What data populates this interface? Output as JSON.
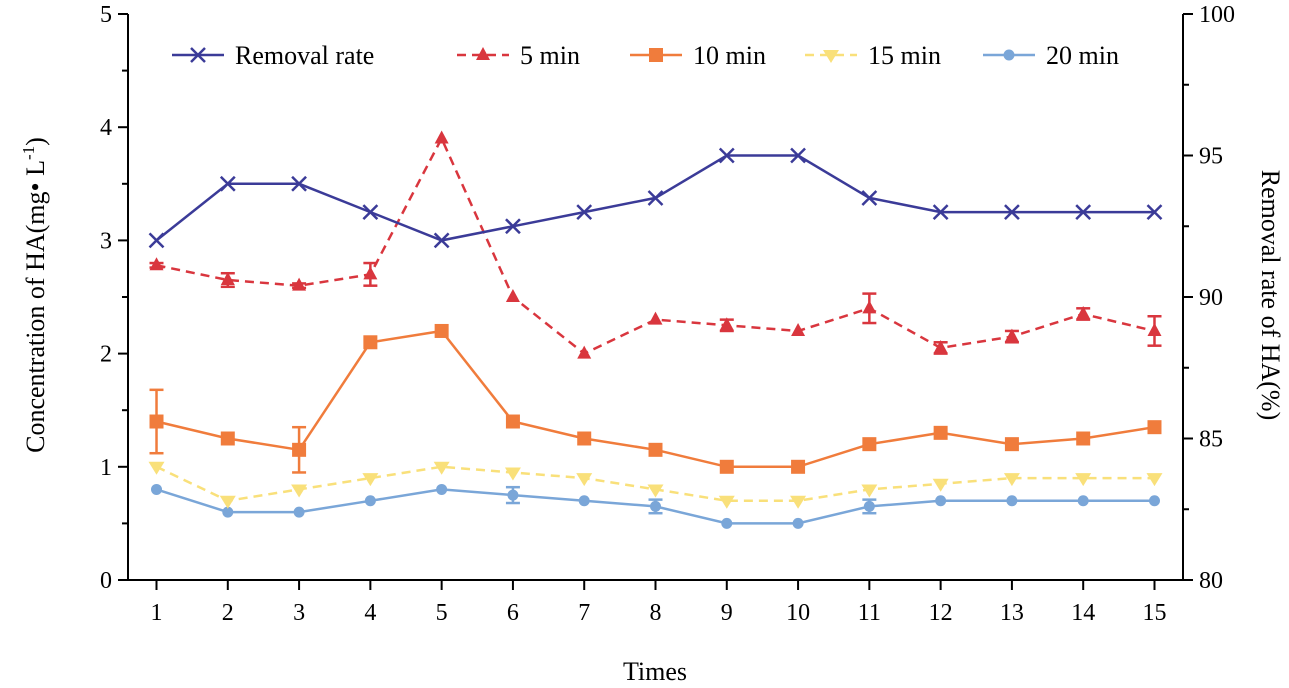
{
  "chart_data": {
    "type": "line",
    "x": [
      1,
      2,
      3,
      4,
      5,
      6,
      7,
      8,
      9,
      10,
      11,
      12,
      13,
      14,
      15
    ],
    "xlabel": "Times",
    "ylabel": "Concentration of HA(mg• L",
    "ylabel_sup": "-1",
    "ylabel_end": ")",
    "y2label": "Removal rate of HA(%)",
    "ylim": [
      0,
      5
    ],
    "y2lim": [
      80,
      100
    ],
    "y_ticks": [
      "0",
      "1",
      "2",
      "3",
      "4",
      "5"
    ],
    "y2_ticks": [
      "80",
      "85",
      "90",
      "95",
      "100"
    ],
    "x_ticks": [
      "1",
      "2",
      "3",
      "4",
      "5",
      "6",
      "7",
      "8",
      "9",
      "10",
      "11",
      "12",
      "13",
      "14",
      "15"
    ],
    "legend_position": "top",
    "grid": false,
    "series": [
      {
        "name": "Removal rate",
        "axis": "right",
        "color": "#3b3b98",
        "marker": "x",
        "dash": "solid",
        "values": [
          92,
          94,
          94,
          93,
          92,
          92.5,
          93,
          93.5,
          95,
          95,
          93.5,
          93,
          93,
          93,
          93
        ],
        "errors": [
          0,
          0,
          0,
          0,
          0,
          0,
          0,
          0,
          0,
          0,
          0,
          0,
          0,
          0,
          0
        ]
      },
      {
        "name": "5 min",
        "axis": "left",
        "color": "#d9363e",
        "marker": "triangle-up",
        "dash": "dashed",
        "values": [
          2.78,
          2.65,
          2.6,
          2.7,
          3.9,
          2.5,
          2.0,
          2.3,
          2.25,
          2.2,
          2.4,
          2.05,
          2.15,
          2.35,
          2.2
        ],
        "errors": [
          0.02,
          0.06,
          0.02,
          0.1,
          0,
          0,
          0,
          0,
          0.05,
          0,
          0.13,
          0.05,
          0.05,
          0.05,
          0.13
        ]
      },
      {
        "name": "10 min",
        "axis": "left",
        "color": "#f07c3c",
        "marker": "square",
        "dash": "solid",
        "values": [
          1.4,
          1.25,
          1.15,
          2.1,
          2.2,
          1.4,
          1.25,
          1.15,
          1.0,
          1.0,
          1.2,
          1.3,
          1.2,
          1.25,
          1.35
        ],
        "errors": [
          0.28,
          0,
          0.2,
          0,
          0,
          0,
          0,
          0,
          0,
          0,
          0,
          0,
          0,
          0,
          0
        ]
      },
      {
        "name": "15 min",
        "axis": "left",
        "color": "#f9e07a",
        "marker": "triangle-down",
        "dash": "dashed",
        "values": [
          1.0,
          0.7,
          0.8,
          0.9,
          1.0,
          0.95,
          0.9,
          0.8,
          0.7,
          0.7,
          0.8,
          0.85,
          0.9,
          0.9,
          0.9
        ],
        "errors": [
          0,
          0,
          0,
          0,
          0,
          0,
          0,
          0,
          0,
          0,
          0,
          0,
          0,
          0,
          0
        ]
      },
      {
        "name": "20 min",
        "axis": "left",
        "color": "#7aa6d8",
        "marker": "circle",
        "dash": "solid",
        "values": [
          0.8,
          0.6,
          0.6,
          0.7,
          0.8,
          0.75,
          0.7,
          0.65,
          0.5,
          0.5,
          0.65,
          0.7,
          0.7,
          0.7,
          0.7
        ],
        "errors": [
          0,
          0,
          0,
          0,
          0,
          0.07,
          0,
          0.06,
          0,
          0,
          0.06,
          0,
          0,
          0,
          0
        ]
      }
    ]
  }
}
